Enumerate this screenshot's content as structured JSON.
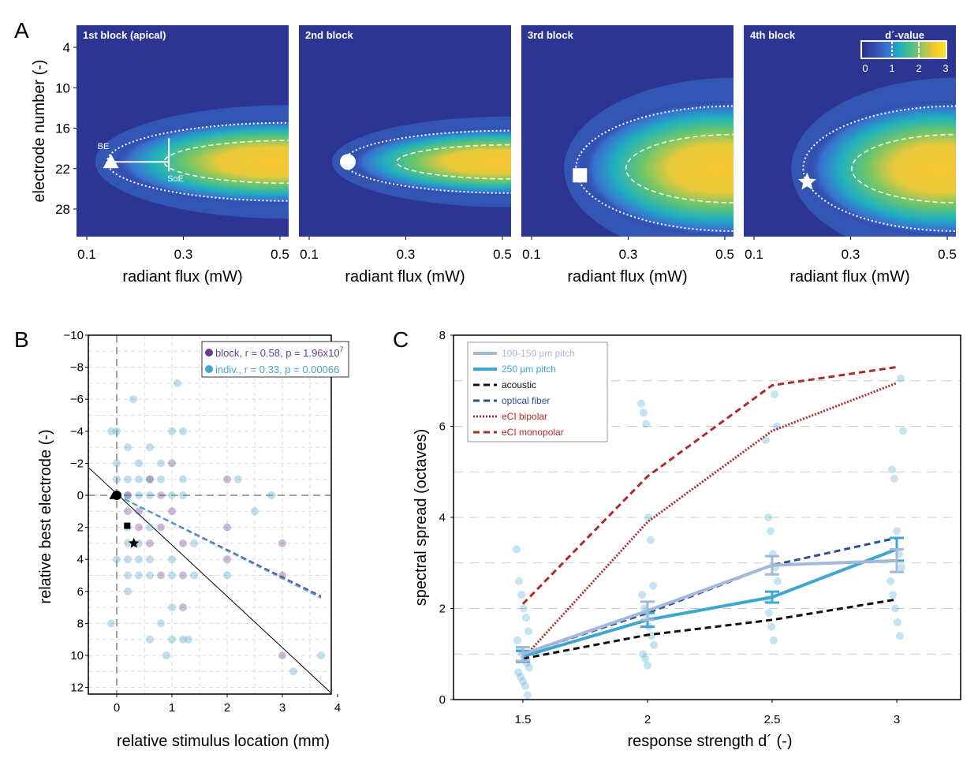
{
  "chart_data": [
    {
      "panel": "A",
      "type": "heatmap",
      "ylabel": "electrode number (-)",
      "xlabel": "radiant flux (mW)",
      "xticks": [
        "0.1",
        "0.3",
        "0.5"
      ],
      "yticks": [
        "4",
        "10",
        "16",
        "22",
        "28"
      ],
      "xlim": [
        0.08,
        0.52
      ],
      "ylim": [
        32,
        1
      ],
      "colorbar": {
        "title": "d´-value",
        "ticks": [
          "0",
          "1",
          "2",
          "3"
        ],
        "range": [
          0,
          3
        ],
        "colors": [
          "#2a2c8c",
          "#3a6fd0",
          "#1fb0c0",
          "#6cc66a",
          "#f5c62e",
          "#f7e81c"
        ]
      },
      "blocks": [
        {
          "title": "1st block (apical)",
          "marker": "triangle",
          "best_electrode": 21,
          "threshold_mW": 0.15,
          "soe_mW": 0.27,
          "annotations": [
            "BE",
            "SoE"
          ],
          "hotspot": {
            "electrode": 21,
            "spread": 3,
            "peak": 2.8
          }
        },
        {
          "title": "2nd block",
          "marker": "circle",
          "best_electrode": 21,
          "threshold_mW": 0.18,
          "hotspot": {
            "electrode": 21,
            "spread": 2,
            "peak": 2.6
          }
        },
        {
          "title": "3rd block",
          "marker": "square",
          "best_electrode": 23,
          "threshold_mW": 0.2,
          "hotspot": {
            "electrode": 22,
            "spread": 6,
            "peak": 2.9
          }
        },
        {
          "title": "4th block",
          "marker": "star",
          "best_electrode": 24,
          "threshold_mW": 0.21,
          "hotspot": {
            "electrode": 22,
            "spread": 6,
            "peak": 2.4
          }
        }
      ]
    },
    {
      "panel": "B",
      "type": "scatter",
      "xlabel": "relative stimulus location (mm)",
      "ylabel": "relative best electrode (-)",
      "xlim": [
        -0.5,
        3.9
      ],
      "ylim": [
        12.4,
        -10
      ],
      "xticks": [
        "0",
        "1",
        "2",
        "3",
        "4"
      ],
      "yticks": [
        "-10",
        "-8",
        "-6",
        "-4",
        "-2",
        "0",
        "2",
        "4",
        "6",
        "8",
        "10",
        "12"
      ],
      "grid": true,
      "legend_position": "top-right",
      "series": [
        {
          "name": "block, r = 0.58, p = 1.96x10",
          "name_sup": "7",
          "color": "#6a3d8f",
          "points": [
            [
              0,
              0
            ],
            [
              0.2,
              0
            ],
            [
              0.4,
              1
            ],
            [
              0.6,
              -1
            ],
            [
              0.8,
              0
            ],
            [
              0.8,
              2
            ],
            [
              1,
              1
            ],
            [
              1.2,
              3
            ],
            [
              1,
              -2
            ],
            [
              0.6,
              3
            ],
            [
              0.8,
              5
            ],
            [
              1.2,
              5
            ],
            [
              1.2,
              7
            ],
            [
              2,
              -1
            ],
            [
              2,
              2
            ],
            [
              2,
              4
            ],
            [
              3,
              3
            ],
            [
              3,
              5
            ],
            [
              3,
              10
            ],
            [
              0.4,
              2
            ],
            [
              0.2,
              1
            ]
          ],
          "fit": [
            [
              0,
              0
            ],
            [
              3.7,
              6.3
            ]
          ]
        },
        {
          "name": "indiv., r = 0.33, p = 0.00066",
          "color": "#49a3cf",
          "points": [
            [
              -0.1,
              -4
            ],
            [
              0,
              -4
            ],
            [
              0,
              -2
            ],
            [
              0.2,
              -3
            ],
            [
              0.3,
              -6
            ],
            [
              0.4,
              -2
            ],
            [
              0.6,
              -3
            ],
            [
              0.8,
              -2
            ],
            [
              1,
              -4
            ],
            [
              1.1,
              -7
            ],
            [
              1.2,
              -4
            ],
            [
              1.6,
              -8
            ],
            [
              2.2,
              -1
            ],
            [
              2.5,
              1
            ],
            [
              2.8,
              0
            ],
            [
              3.3,
              -8
            ],
            [
              0,
              -1
            ],
            [
              0.2,
              -1
            ],
            [
              0.4,
              -1
            ],
            [
              0.6,
              -1
            ],
            [
              0.8,
              -1
            ],
            [
              1.2,
              -1
            ],
            [
              0.2,
              0
            ],
            [
              0.4,
              0
            ],
            [
              0.6,
              0
            ],
            [
              1,
              0
            ],
            [
              1.2,
              0
            ],
            [
              0.2,
              2
            ],
            [
              0.4,
              3
            ],
            [
              0.6,
              2
            ],
            [
              0,
              4
            ],
            [
              0.2,
              4
            ],
            [
              0.4,
              4
            ],
            [
              0.6,
              4
            ],
            [
              1,
              4
            ],
            [
              0.2,
              5
            ],
            [
              0.4,
              5
            ],
            [
              0.6,
              5
            ],
            [
              1,
              5
            ],
            [
              1.4,
              5
            ],
            [
              0.2,
              6
            ],
            [
              -0.1,
              8
            ],
            [
              0.6,
              9
            ],
            [
              0.8,
              8
            ],
            [
              0.9,
              10
            ],
            [
              1,
              9
            ],
            [
              1.2,
              9
            ],
            [
              1.3,
              9
            ],
            [
              0.2,
              3
            ],
            [
              1.4,
              3
            ],
            [
              2,
              5
            ],
            [
              3.2,
              11
            ],
            [
              3.7,
              10
            ],
            [
              1,
              7
            ]
          ],
          "fit": [
            [
              0,
              0
            ],
            [
              3.7,
              6.4
            ]
          ]
        }
      ],
      "reference_line": [
        [
          -0.5,
          -1.7
        ],
        [
          3.9,
          12.4
        ]
      ],
      "markers": [
        {
          "shape": "circle",
          "x": 0,
          "y": 0
        },
        {
          "shape": "triangle",
          "x": -0.05,
          "y": 0
        },
        {
          "shape": "square",
          "x": 0.19,
          "y": 1.9
        },
        {
          "shape": "star",
          "x": 0.31,
          "y": 3
        }
      ]
    },
    {
      "panel": "C",
      "type": "line",
      "xlabel": "response strength d´ (-)",
      "ylabel": "spectral spread (octaves)",
      "x": [
        1.5,
        2,
        2.5,
        3
      ],
      "xticks": [
        "1.5",
        "2",
        "2.5",
        "3"
      ],
      "yticks": [
        "0",
        "2",
        "4",
        "6",
        "8"
      ],
      "xlim": [
        1.22,
        3.25
      ],
      "ylim": [
        0,
        8
      ],
      "grid": true,
      "legend_position": "top-left",
      "series": [
        {
          "name": "100-150 µm pitch",
          "color": "#a4b8d8",
          "style": "solid",
          "values": [
            1.0,
            1.95,
            2.95,
            3.05
          ],
          "err": [
            0.15,
            0.2,
            0.2,
            0.25
          ]
        },
        {
          "name": "250 µm pitch",
          "color": "#3ea6cf",
          "style": "solid",
          "values": [
            0.95,
            1.75,
            2.25,
            3.3
          ],
          "err": [
            0.12,
            0.15,
            0.12,
            0.25
          ]
        },
        {
          "name": "acoustic",
          "color": "#111111",
          "style": "dashed",
          "values": [
            0.9,
            1.42,
            1.75,
            2.2
          ]
        },
        {
          "name": "optical fiber",
          "color": "#2d4f96",
          "style": "dashed",
          "values": [
            1.0,
            1.9,
            2.95,
            3.55
          ]
        },
        {
          "name": "eCI bipolar",
          "color": "#b02a2a",
          "style": "dotted",
          "values": [
            0.9,
            3.9,
            5.9,
            6.95
          ]
        },
        {
          "name": "eCI monopolar",
          "color": "#b02a2a",
          "style": "dashed",
          "values": [
            2.1,
            4.9,
            6.9,
            7.3
          ]
        }
      ],
      "scatter": [
        [
          1.5,
          3.3
        ],
        [
          1.5,
          2.6
        ],
        [
          1.5,
          2.3
        ],
        [
          1.5,
          2.0
        ],
        [
          1.5,
          1.8
        ],
        [
          1.5,
          1.5
        ],
        [
          1.5,
          1.3
        ],
        [
          1.5,
          1.1
        ],
        [
          1.5,
          1.0
        ],
        [
          1.5,
          0.9
        ],
        [
          1.5,
          0.8
        ],
        [
          1.5,
          0.7
        ],
        [
          1.5,
          0.6
        ],
        [
          1.5,
          0.5
        ],
        [
          1.5,
          0.4
        ],
        [
          1.5,
          0.3
        ],
        [
          1.5,
          0.1
        ],
        [
          2,
          6.5
        ],
        [
          2,
          6.3
        ],
        [
          2,
          6.05
        ],
        [
          2,
          4.0
        ],
        [
          2,
          3.5
        ],
        [
          2,
          2.5
        ],
        [
          2,
          2.3
        ],
        [
          2,
          2.0
        ],
        [
          2,
          1.8
        ],
        [
          2,
          1.6
        ],
        [
          2,
          1.4
        ],
        [
          2,
          1.2
        ],
        [
          2,
          1.0
        ],
        [
          2,
          0.9
        ],
        [
          2,
          0.75
        ],
        [
          2.5,
          6.7
        ],
        [
          2.5,
          6.0
        ],
        [
          2.5,
          5.7
        ],
        [
          2.5,
          4.0
        ],
        [
          2.5,
          3.7
        ],
        [
          2.5,
          3.2
        ],
        [
          2.5,
          2.9
        ],
        [
          2.5,
          2.6
        ],
        [
          2.5,
          2.2
        ],
        [
          2.5,
          1.9
        ],
        [
          2.5,
          1.6
        ],
        [
          2.5,
          1.3
        ],
        [
          3,
          7.05
        ],
        [
          3,
          5.9
        ],
        [
          3,
          5.05
        ],
        [
          3,
          4.85
        ],
        [
          3,
          3.7
        ],
        [
          3,
          3.2
        ],
        [
          3,
          2.9
        ],
        [
          3,
          2.6
        ],
        [
          3,
          2.3
        ],
        [
          3,
          2.0
        ],
        [
          3,
          1.7
        ],
        [
          3,
          1.4
        ]
      ]
    }
  ],
  "panel_labels": [
    "A",
    "B",
    "C"
  ]
}
